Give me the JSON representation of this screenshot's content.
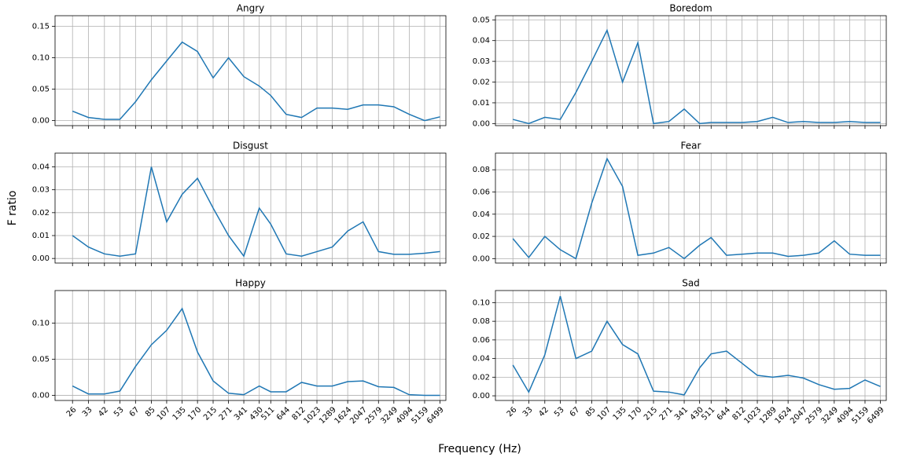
{
  "figure": {
    "ylabel": "F ratio",
    "xlabel": "Frequency (Hz)"
  },
  "chart_data": [
    {
      "type": "line",
      "title": "Angry",
      "log_x": true,
      "grid": true,
      "color": "#1f77b4",
      "x": [
        26,
        33,
        42,
        53,
        67,
        85,
        107,
        135,
        170,
        215,
        271,
        341,
        430,
        511,
        644,
        812,
        1023,
        1289,
        1624,
        2047,
        2579,
        3249,
        4094,
        5159,
        6499
      ],
      "values": [
        0.015,
        0.005,
        0.002,
        0.002,
        0.03,
        0.065,
        0.095,
        0.125,
        0.11,
        0.068,
        0.1,
        0.07,
        0.055,
        0.04,
        0.01,
        0.005,
        0.02,
        0.02,
        0.018,
        0.025,
        0.025,
        0.022,
        0.01,
        0.0,
        0.006
      ],
      "xlim": [
        20,
        7100
      ],
      "ylim": [
        -0.008,
        0.167
      ],
      "xticks": [
        26,
        33,
        42,
        53,
        67,
        85,
        107,
        135,
        170,
        215,
        271,
        341,
        430,
        511,
        644,
        812,
        1023,
        1289,
        1624,
        2047,
        2579,
        3249,
        4094,
        5159,
        6499
      ],
      "yticks": [
        {
          "value": 0,
          "label": "0.00"
        },
        0.05,
        {
          "value": 0.1,
          "label": "0.10"
        },
        0.15
      ]
    },
    {
      "type": "line",
      "title": "Boredom",
      "log_x": true,
      "grid": true,
      "color": "#1f77b4",
      "x": [
        26,
        33,
        42,
        53,
        67,
        85,
        107,
        135,
        170,
        215,
        271,
        341,
        430,
        511,
        644,
        812,
        1023,
        1289,
        1624,
        2047,
        2579,
        3249,
        4094,
        5159,
        6499
      ],
      "values": [
        0.002,
        0.0,
        0.003,
        0.002,
        0.015,
        0.03,
        0.045,
        0.02,
        0.039,
        0.0,
        0.001,
        0.007,
        0.0,
        0.0005,
        0.0005,
        0.0005,
        0.001,
        0.003,
        0.0005,
        0.001,
        0.0005,
        0.0005,
        0.001,
        0.0005,
        0.0005
      ],
      "xlim": [
        20,
        7100
      ],
      "ylim": [
        -0.001,
        0.052
      ],
      "xticks": [
        26,
        33,
        42,
        53,
        67,
        85,
        107,
        135,
        170,
        215,
        271,
        341,
        430,
        511,
        644,
        812,
        1023,
        1289,
        1624,
        2047,
        2579,
        3249,
        4094,
        5159,
        6499
      ],
      "yticks": [
        {
          "value": 0,
          "label": "0.00"
        },
        0.01,
        0.02,
        0.03,
        0.04,
        0.05
      ]
    },
    {
      "type": "line",
      "title": "Disgust",
      "log_x": true,
      "grid": true,
      "color": "#1f77b4",
      "x": [
        26,
        33,
        42,
        53,
        67,
        85,
        107,
        135,
        170,
        215,
        271,
        341,
        430,
        511,
        644,
        812,
        1023,
        1289,
        1624,
        2047,
        2579,
        3249,
        4094,
        5159,
        6499
      ],
      "values": [
        0.01,
        0.005,
        0.002,
        0.001,
        0.002,
        0.04,
        0.016,
        0.028,
        0.035,
        0.022,
        0.01,
        0.001,
        0.022,
        0.015,
        0.002,
        0.001,
        0.003,
        0.005,
        0.012,
        0.016,
        0.003,
        0.0018,
        0.0018,
        0.0023,
        0.003
      ],
      "xlim": [
        20,
        7100
      ],
      "ylim": [
        -0.002,
        0.046
      ],
      "xticks": [
        26,
        33,
        42,
        53,
        67,
        85,
        107,
        135,
        170,
        215,
        271,
        341,
        430,
        511,
        644,
        812,
        1023,
        1289,
        1624,
        2047,
        2579,
        3249,
        4094,
        5159,
        6499
      ],
      "yticks": [
        {
          "value": 0,
          "label": "0.00"
        },
        0.01,
        0.02,
        0.03,
        0.04
      ]
    },
    {
      "type": "line",
      "title": "Fear",
      "log_x": true,
      "grid": true,
      "color": "#1f77b4",
      "x": [
        26,
        33,
        42,
        53,
        67,
        85,
        107,
        135,
        170,
        215,
        271,
        341,
        430,
        511,
        644,
        812,
        1023,
        1289,
        1624,
        2047,
        2579,
        3249,
        4094,
        5159,
        6499
      ],
      "values": [
        0.018,
        0.001,
        0.02,
        0.008,
        0.0,
        0.05,
        0.09,
        0.065,
        0.003,
        0.005,
        0.01,
        0.0,
        0.012,
        0.019,
        0.003,
        0.004,
        0.005,
        0.005,
        0.002,
        0.003,
        0.005,
        0.016,
        0.004,
        0.003,
        0.003
      ],
      "xlim": [
        20,
        7100
      ],
      "ylim": [
        -0.004,
        0.095
      ],
      "xticks": [
        26,
        33,
        42,
        53,
        67,
        85,
        107,
        135,
        170,
        215,
        271,
        341,
        430,
        511,
        644,
        812,
        1023,
        1289,
        1624,
        2047,
        2579,
        3249,
        4094,
        5159,
        6499
      ],
      "yticks": [
        {
          "value": 0,
          "label": "0.00"
        },
        0.02,
        0.04,
        0.06,
        0.08
      ]
    },
    {
      "type": "line",
      "title": "Happy",
      "log_x": true,
      "grid": true,
      "color": "#1f77b4",
      "x": [
        26,
        33,
        42,
        53,
        67,
        85,
        107,
        135,
        170,
        215,
        271,
        341,
        430,
        511,
        644,
        812,
        1023,
        1289,
        1624,
        2047,
        2579,
        3249,
        4094,
        5159,
        6499
      ],
      "values": [
        0.013,
        0.002,
        0.002,
        0.006,
        0.04,
        0.07,
        0.09,
        0.12,
        0.06,
        0.02,
        0.003,
        0.001,
        0.013,
        0.005,
        0.005,
        0.018,
        0.013,
        0.013,
        0.019,
        0.02,
        0.012,
        0.011,
        0.001,
        0.0,
        0.0
      ],
      "xlim": [
        20,
        7100
      ],
      "ylim": [
        -0.007,
        0.145
      ],
      "xticks": [
        26,
        33,
        42,
        53,
        67,
        85,
        107,
        135,
        170,
        215,
        271,
        341,
        430,
        511,
        644,
        812,
        1023,
        1289,
        1624,
        2047,
        2579,
        3249,
        4094,
        5159,
        6499
      ],
      "yticks": [
        {
          "value": 0,
          "label": "0.00"
        },
        0.05,
        {
          "value": 0.1,
          "label": "0.10"
        }
      ]
    },
    {
      "type": "line",
      "title": "Sad",
      "log_x": true,
      "grid": true,
      "color": "#1f77b4",
      "x": [
        26,
        33,
        42,
        53,
        67,
        85,
        107,
        135,
        170,
        215,
        271,
        341,
        430,
        511,
        644,
        812,
        1023,
        1289,
        1624,
        2047,
        2579,
        3249,
        4094,
        5159,
        6499
      ],
      "values": [
        0.033,
        0.004,
        0.044,
        0.107,
        0.04,
        0.048,
        0.08,
        0.055,
        0.045,
        0.005,
        0.004,
        0.001,
        0.03,
        0.045,
        0.048,
        0.035,
        0.022,
        0.02,
        0.022,
        0.019,
        0.012,
        0.007,
        0.008,
        0.017,
        0.01
      ],
      "xlim": [
        20,
        7100
      ],
      "ylim": [
        -0.005,
        0.113
      ],
      "xticks": [
        26,
        33,
        42,
        53,
        67,
        85,
        107,
        135,
        170,
        215,
        271,
        341,
        430,
        511,
        644,
        812,
        1023,
        1289,
        1624,
        2047,
        2579,
        3249,
        4094,
        5159,
        6499
      ],
      "yticks": [
        {
          "value": 0,
          "label": "0.00"
        },
        0.02,
        0.04,
        0.06,
        0.08,
        {
          "value": 0.1,
          "label": "0.10"
        }
      ]
    }
  ]
}
